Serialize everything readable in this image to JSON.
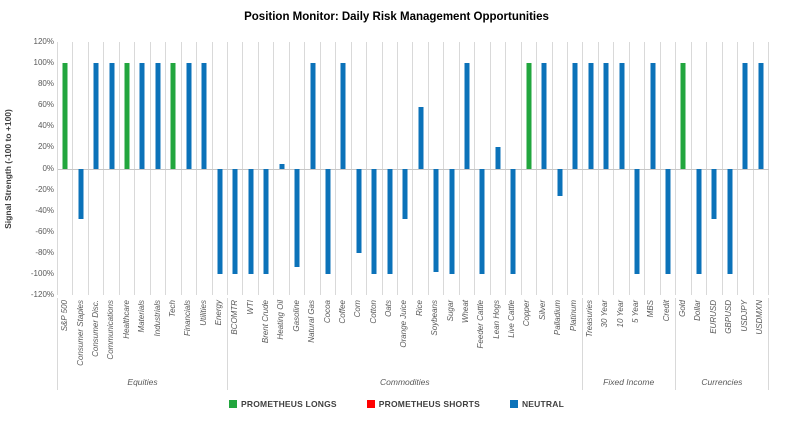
{
  "chart_data": {
    "type": "bar",
    "title": "Position Monitor: Daily Risk Management Opportunities",
    "ylabel": "Signal Strength (-100 to +100)",
    "ylim": [
      -120,
      120
    ],
    "y_tick_step": 20,
    "y_tick_labels": [
      "120%",
      "100%",
      "80%",
      "60%",
      "40%",
      "20%",
      "0%",
      "-20%",
      "-40%",
      "-60%",
      "-80%",
      "-100%",
      "-120%"
    ],
    "grid": "vertical-category-lines-only",
    "legend_position": "bottom",
    "groups": [
      {
        "name": "Equities",
        "categories": [
          {
            "label": "S&P 500",
            "value": 100,
            "signal": "long"
          },
          {
            "label": "Consumer Staples",
            "value": -48,
            "signal": "neutral"
          },
          {
            "label": "Consumer Disc.",
            "value": 100,
            "signal": "neutral"
          },
          {
            "label": "Communications",
            "value": 100,
            "signal": "neutral"
          },
          {
            "label": "Healthcare",
            "value": 100,
            "signal": "long"
          },
          {
            "label": "Materials",
            "value": 100,
            "signal": "neutral"
          },
          {
            "label": "Industrials",
            "value": 100,
            "signal": "neutral"
          },
          {
            "label": "Tech",
            "value": 100,
            "signal": "long"
          },
          {
            "label": "Financials",
            "value": 100,
            "signal": "neutral"
          },
          {
            "label": "Utilities",
            "value": 100,
            "signal": "neutral"
          },
          {
            "label": "Energy",
            "value": -100,
            "signal": "neutral"
          }
        ]
      },
      {
        "name": "Commodities",
        "categories": [
          {
            "label": "BCOMTR",
            "value": -100,
            "signal": "neutral"
          },
          {
            "label": "WTI",
            "value": -100,
            "signal": "neutral"
          },
          {
            "label": "Brent Crude",
            "value": -100,
            "signal": "neutral"
          },
          {
            "label": "Heating Oil",
            "value": 4,
            "signal": "neutral"
          },
          {
            "label": "Gasoline",
            "value": -93,
            "signal": "neutral"
          },
          {
            "label": "Natural Gas",
            "value": 100,
            "signal": "neutral"
          },
          {
            "label": "Cocoa",
            "value": -100,
            "signal": "neutral"
          },
          {
            "label": "Coffee",
            "value": 100,
            "signal": "neutral"
          },
          {
            "label": "Corn",
            "value": -80,
            "signal": "neutral"
          },
          {
            "label": "Cotton",
            "value": -100,
            "signal": "neutral"
          },
          {
            "label": "Oats",
            "value": -100,
            "signal": "neutral"
          },
          {
            "label": "Orange Juice",
            "value": -48,
            "signal": "neutral"
          },
          {
            "label": "Rice",
            "value": 58,
            "signal": "neutral"
          },
          {
            "label": "Soybeans",
            "value": -98,
            "signal": "neutral"
          },
          {
            "label": "Sugar",
            "value": -100,
            "signal": "neutral"
          },
          {
            "label": "Wheat",
            "value": 100,
            "signal": "neutral"
          },
          {
            "label": "Feeder Cattle",
            "value": -100,
            "signal": "neutral"
          },
          {
            "label": "Lean Hogs",
            "value": 20,
            "signal": "neutral"
          },
          {
            "label": "Live Cattle",
            "value": -100,
            "signal": "neutral"
          },
          {
            "label": "Copper",
            "value": 100,
            "signal": "long"
          },
          {
            "label": "Silver",
            "value": 100,
            "signal": "neutral"
          },
          {
            "label": "Palladium",
            "value": -26,
            "signal": "neutral"
          },
          {
            "label": "Platinum",
            "value": 100,
            "signal": "neutral"
          }
        ]
      },
      {
        "name": "Fixed Income",
        "categories": [
          {
            "label": "Treasuries",
            "value": 100,
            "signal": "neutral"
          },
          {
            "label": "30 Year",
            "value": 100,
            "signal": "neutral"
          },
          {
            "label": "10 Year",
            "value": 100,
            "signal": "neutral"
          },
          {
            "label": "5 Year",
            "value": -100,
            "signal": "neutral"
          },
          {
            "label": "MBS",
            "value": 100,
            "signal": "neutral"
          },
          {
            "label": "Credit",
            "value": -100,
            "signal": "neutral"
          }
        ]
      },
      {
        "name": "Currencies",
        "categories": [
          {
            "label": "Gold",
            "value": 100,
            "signal": "long"
          },
          {
            "label": "Dollar",
            "value": -100,
            "signal": "neutral"
          },
          {
            "label": "EURUSD",
            "value": -48,
            "signal": "neutral"
          },
          {
            "label": "GBPUSD",
            "value": -100,
            "signal": "neutral"
          },
          {
            "label": "USDJPY",
            "value": 100,
            "signal": "neutral"
          },
          {
            "label": "USDMXN",
            "value": 100,
            "signal": "neutral"
          }
        ]
      }
    ]
  },
  "colors": {
    "long": "#22A63E",
    "short": "#FF0000",
    "neutral": "#0B72B9",
    "gridline": "#D9D9D9",
    "axis_text": "#595959"
  },
  "legend": {
    "items": [
      {
        "label": "PROMETHEUS LONGS",
        "signal": "long",
        "color": "#22A63E"
      },
      {
        "label": "PROMETHEUS SHORTS",
        "signal": "short",
        "color": "#FF0000"
      },
      {
        "label": "NEUTRAL",
        "signal": "neutral",
        "color": "#0B72B9"
      }
    ]
  }
}
